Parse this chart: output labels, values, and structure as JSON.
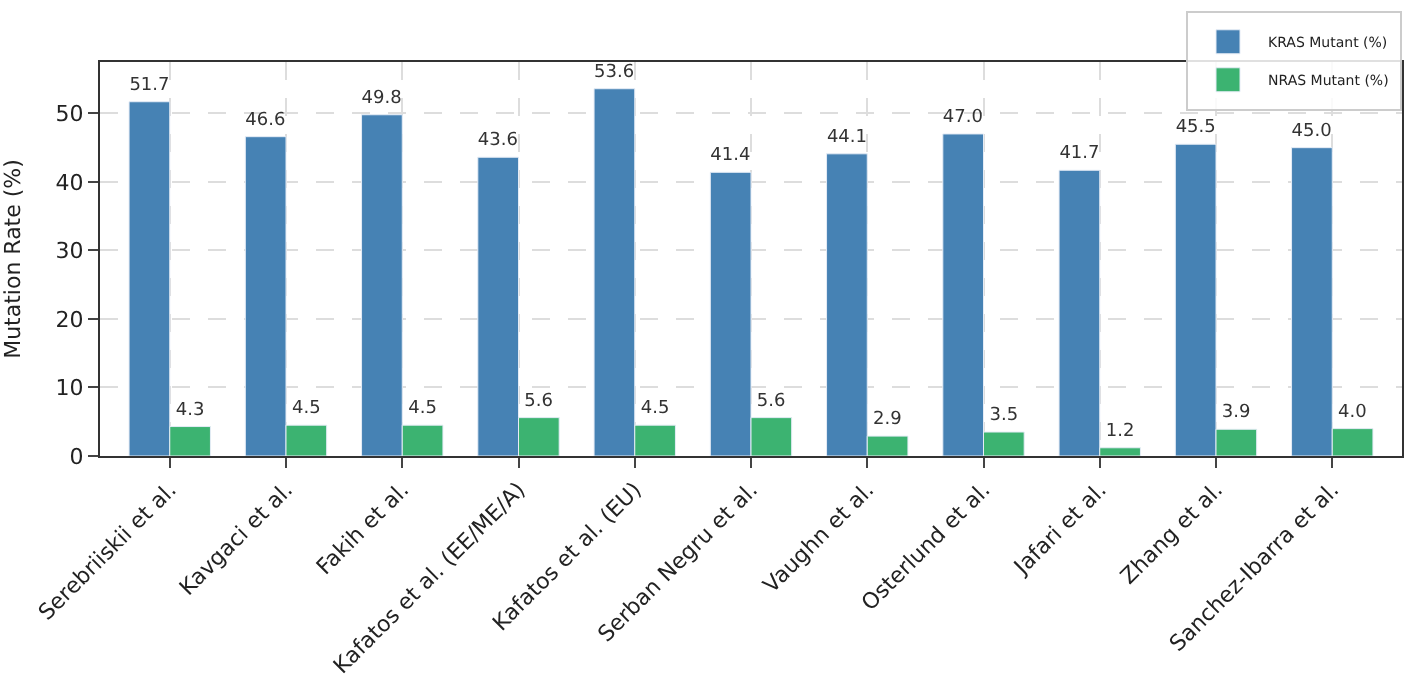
{
  "chart_data": {
    "type": "bar",
    "ylabel": "Mutation Rate (%)",
    "categories": [
      "Serebriiskii et al.",
      "Kavgaci et al.",
      "Fakih et al.",
      "Kafatos et al. (EE/ME/A)",
      "Kafatos et al. (EU)",
      "Serban Negru et al.",
      "Vaughn et al.",
      "Osterlund et al.",
      "Jafari et al.",
      "Zhang et al.",
      "Sanchez-Ibarra et al."
    ],
    "series": [
      {
        "name": "KRAS Mutant (%)",
        "color": "#4682b4",
        "values": [
          51.7,
          46.6,
          49.8,
          43.6,
          53.6,
          41.4,
          44.1,
          47.0,
          41.7,
          45.5,
          45.0
        ],
        "value_labels": [
          "51.7",
          "46.6",
          "49.8",
          "43.6",
          "53.6",
          "41.4",
          "44.1",
          "47.0",
          "41.7",
          "45.5",
          "45.0"
        ]
      },
      {
        "name": "NRAS Mutant (%)",
        "color": "#3cb371",
        "values": [
          4.3,
          4.5,
          4.5,
          5.6,
          4.5,
          5.6,
          2.9,
          3.5,
          1.2,
          3.9,
          4.0
        ],
        "value_labels": [
          "4.3",
          "4.5",
          "4.5",
          "5.6",
          "4.5",
          "5.6",
          "2.9",
          "3.5",
          "1.2",
          "3.9",
          "4.0"
        ]
      }
    ],
    "ylim": [
      0,
      57.5
    ],
    "yticks": [
      0,
      10,
      20,
      30,
      40,
      50
    ],
    "grid": true,
    "legend": "top right"
  }
}
